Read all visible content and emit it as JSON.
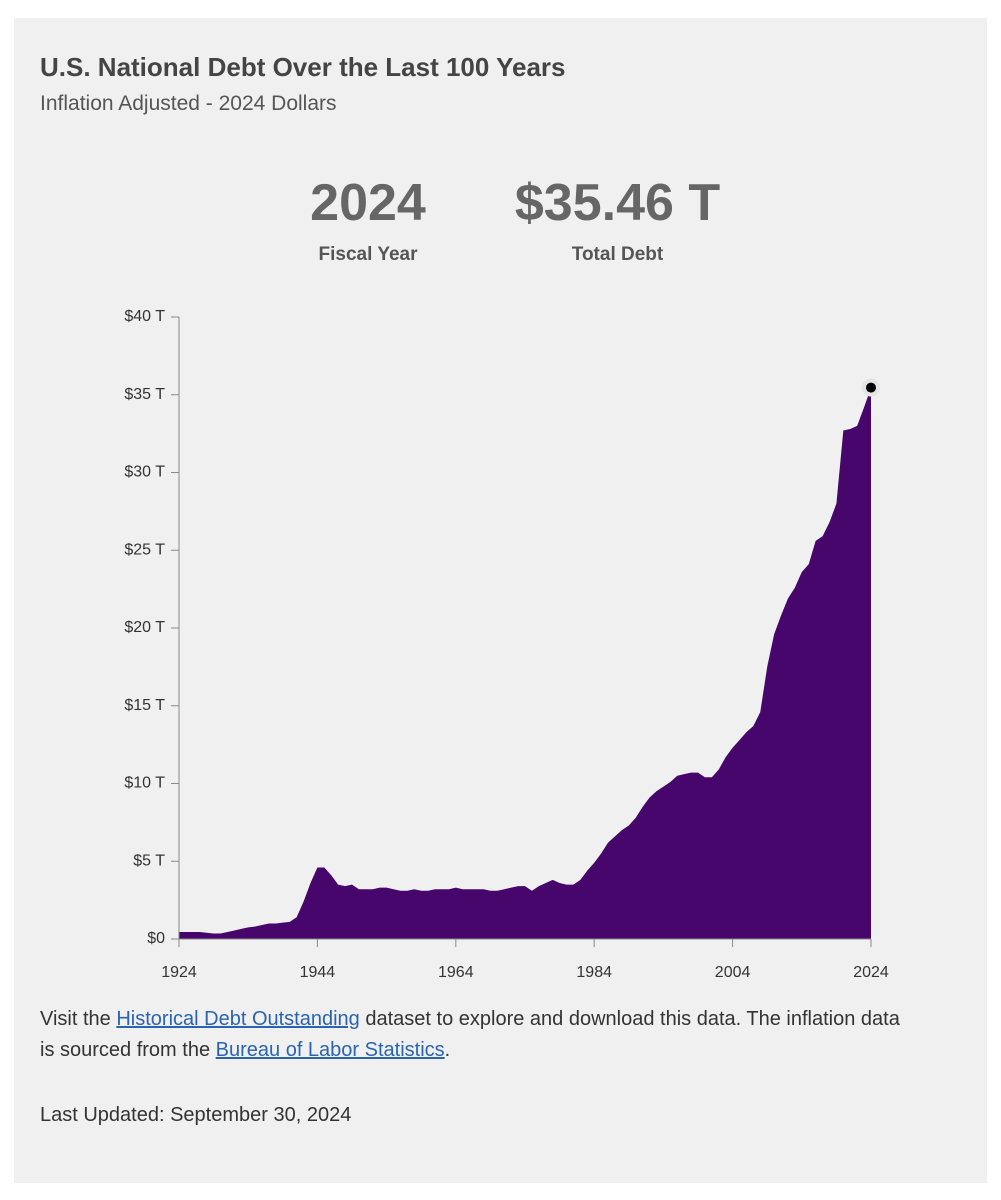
{
  "chart_data": {
    "type": "area",
    "title": "U.S. National Debt Over the Last 100 Years",
    "subtitle": "Inflation Adjusted - 2024 Dollars",
    "highlight": {
      "year": "2024",
      "year_label": "Fiscal Year",
      "value": "$35.46 T",
      "value_label": "Total Debt"
    },
    "color": "#46066b",
    "x": [
      1924,
      1925,
      1926,
      1927,
      1928,
      1929,
      1930,
      1931,
      1932,
      1933,
      1934,
      1935,
      1936,
      1937,
      1938,
      1939,
      1940,
      1941,
      1942,
      1943,
      1944,
      1945,
      1946,
      1947,
      1948,
      1949,
      1950,
      1951,
      1952,
      1953,
      1954,
      1955,
      1956,
      1957,
      1958,
      1959,
      1960,
      1961,
      1962,
      1963,
      1964,
      1965,
      1966,
      1967,
      1968,
      1969,
      1970,
      1971,
      1972,
      1973,
      1974,
      1975,
      1976,
      1977,
      1978,
      1979,
      1980,
      1981,
      1982,
      1983,
      1984,
      1985,
      1986,
      1987,
      1988,
      1989,
      1990,
      1991,
      1992,
      1993,
      1994,
      1995,
      1996,
      1997,
      1998,
      1999,
      2000,
      2001,
      2002,
      2003,
      2004,
      2005,
      2006,
      2007,
      2008,
      2009,
      2010,
      2011,
      2012,
      2013,
      2014,
      2015,
      2016,
      2017,
      2018,
      2019,
      2020,
      2021,
      2022,
      2023,
      2024
    ],
    "values": [
      0.45,
      0.45,
      0.45,
      0.45,
      0.4,
      0.35,
      0.35,
      0.45,
      0.55,
      0.65,
      0.75,
      0.8,
      0.9,
      1.0,
      1.0,
      1.05,
      1.1,
      1.4,
      2.4,
      3.6,
      4.6,
      4.6,
      4.1,
      3.5,
      3.4,
      3.5,
      3.2,
      3.2,
      3.2,
      3.3,
      3.3,
      3.2,
      3.1,
      3.1,
      3.2,
      3.1,
      3.1,
      3.2,
      3.2,
      3.2,
      3.3,
      3.2,
      3.2,
      3.2,
      3.2,
      3.1,
      3.1,
      3.2,
      3.3,
      3.4,
      3.4,
      3.1,
      3.4,
      3.6,
      3.8,
      3.6,
      3.5,
      3.5,
      3.8,
      4.4,
      4.9,
      5.5,
      6.2,
      6.6,
      7.0,
      7.3,
      7.8,
      8.5,
      9.1,
      9.5,
      9.8,
      10.1,
      10.5,
      10.6,
      10.7,
      10.7,
      10.4,
      10.4,
      10.9,
      11.7,
      12.3,
      12.8,
      13.3,
      13.7,
      14.6,
      17.5,
      19.6,
      20.8,
      21.9,
      22.6,
      23.6,
      24.1,
      25.6,
      25.9,
      26.8,
      28.0,
      32.7,
      32.8,
      33.0,
      34.2,
      35.46
    ],
    "xlim": [
      1924,
      2024
    ],
    "xticks": [
      1924,
      1944,
      1964,
      1984,
      2004,
      2024
    ],
    "ylim": [
      0,
      40
    ],
    "yticks": [
      {
        "value": 0,
        "label": "$0"
      },
      {
        "value": 5,
        "label": "$5 T"
      },
      {
        "value": 10,
        "label": "$10 T"
      },
      {
        "value": 15,
        "label": "$15 T"
      },
      {
        "value": 20,
        "label": "$20 T"
      },
      {
        "value": 25,
        "label": "$25 T"
      },
      {
        "value": 30,
        "label": "$30 T"
      },
      {
        "value": 35,
        "label": "$35 T"
      },
      {
        "value": 40,
        "label": "$40 T"
      }
    ]
  },
  "footer": {
    "text_1": "Visit the",
    "link_1": "Historical Debt Outstanding",
    "text_2": "dataset to explore and download this data. The inflation data is sourced from the",
    "link_2": "Bureau of Labor Statistics",
    "text_3": ".",
    "updated": "Last Updated: September 30, 2024"
  }
}
